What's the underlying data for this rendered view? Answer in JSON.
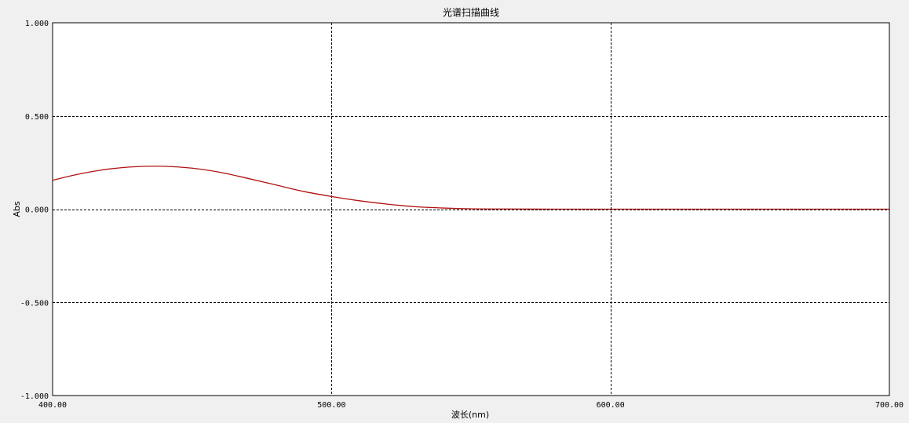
{
  "chart_data": {
    "type": "line",
    "title": "光谱扫描曲线",
    "xlabel": "波长(nm)",
    "ylabel": "Abs",
    "xlim": [
      400,
      700
    ],
    "ylim": [
      -1.0,
      1.0
    ],
    "x_ticks": [
      400,
      500,
      600,
      700
    ],
    "x_tick_labels": [
      "400.00",
      "500.00",
      "600.00",
      "700.00"
    ],
    "y_ticks": [
      -1.0,
      -0.5,
      0.0,
      0.5,
      1.0
    ],
    "y_tick_labels": [
      "-1.000",
      "-0.500",
      "0.000",
      "0.500",
      "1.000"
    ],
    "grid": true,
    "series": [
      {
        "color": "#b01010",
        "x": [
          400,
          410,
          420,
          430,
          440,
          450,
          460,
          470,
          480,
          490,
          500,
          510,
          520,
          530,
          540,
          550,
          560,
          580,
          600,
          620,
          640,
          660,
          680,
          700
        ],
        "y": [
          0.155,
          0.19,
          0.215,
          0.228,
          0.23,
          0.22,
          0.198,
          0.165,
          0.13,
          0.095,
          0.068,
          0.045,
          0.027,
          0.013,
          0.006,
          0.002,
          0.001,
          0.0,
          0.0,
          0.0,
          0.0,
          0.0,
          0.0,
          0.0
        ]
      }
    ]
  }
}
